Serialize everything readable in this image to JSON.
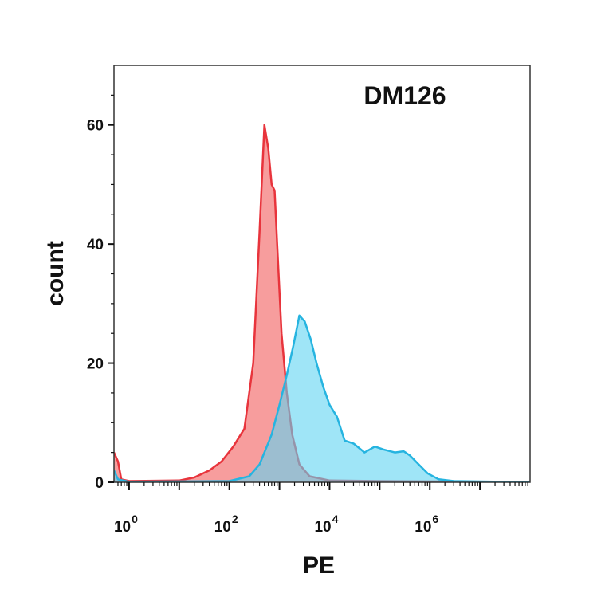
{
  "chart_data": {
    "type": "area",
    "title": "DM126",
    "xlabel": "PE",
    "ylabel": "count",
    "x_scale": "log10",
    "xlim": [
      0.5,
      100000000
    ],
    "ylim": [
      0,
      70
    ],
    "y_ticks": [
      0,
      20,
      40,
      60
    ],
    "y_tick_labels": [
      "0",
      "20",
      "40",
      "60"
    ],
    "x_ticks": [
      1,
      100,
      10000,
      1000000
    ],
    "x_tick_labels": [
      {
        "base": "10",
        "exp": "0"
      },
      {
        "base": "10",
        "exp": "2"
      },
      {
        "base": "10",
        "exp": "4"
      },
      {
        "base": "10",
        "exp": "6"
      }
    ],
    "grid": false,
    "legend": "none",
    "series": [
      {
        "color": "#f47c7c",
        "stroke": "#e8343c",
        "points": [
          [
            0.5,
            5
          ],
          [
            0.6,
            3.5
          ],
          [
            0.7,
            0.5
          ],
          [
            1,
            0.2
          ],
          [
            10,
            0.3
          ],
          [
            20,
            0.8
          ],
          [
            40,
            2
          ],
          [
            70,
            3.5
          ],
          [
            120,
            6
          ],
          [
            200,
            9
          ],
          [
            300,
            20
          ],
          [
            400,
            42
          ],
          [
            500,
            60
          ],
          [
            600,
            56
          ],
          [
            700,
            50
          ],
          [
            800,
            49
          ],
          [
            900,
            40
          ],
          [
            1100,
            25
          ],
          [
            1400,
            15
          ],
          [
            1800,
            8
          ],
          [
            2500,
            3
          ],
          [
            4000,
            1
          ],
          [
            10000,
            0.3
          ],
          [
            100000,
            0.2
          ],
          [
            10000000,
            0.1
          ],
          [
            100000000,
            0
          ]
        ]
      },
      {
        "color": "#5fd4f2",
        "stroke": "#26b4e0",
        "points": [
          [
            0.5,
            2
          ],
          [
            0.6,
            0.5
          ],
          [
            1,
            0.1
          ],
          [
            100,
            0.2
          ],
          [
            250,
            1
          ],
          [
            400,
            3
          ],
          [
            700,
            8
          ],
          [
            1000,
            13
          ],
          [
            1400,
            18
          ],
          [
            1900,
            23
          ],
          [
            2500,
            28
          ],
          [
            3200,
            27
          ],
          [
            4200,
            24
          ],
          [
            5500,
            20
          ],
          [
            7500,
            16
          ],
          [
            10000,
            13
          ],
          [
            14000,
            11
          ],
          [
            20000,
            7
          ],
          [
            30000,
            6.5
          ],
          [
            50000,
            5
          ],
          [
            80000,
            6
          ],
          [
            120000,
            5.5
          ],
          [
            200000,
            5
          ],
          [
            300000,
            5.2
          ],
          [
            400000,
            4.5
          ],
          [
            600000,
            3
          ],
          [
            900000,
            1.5
          ],
          [
            1500000,
            0.5
          ],
          [
            3000000,
            0.2
          ],
          [
            100000000,
            0
          ]
        ]
      }
    ]
  }
}
